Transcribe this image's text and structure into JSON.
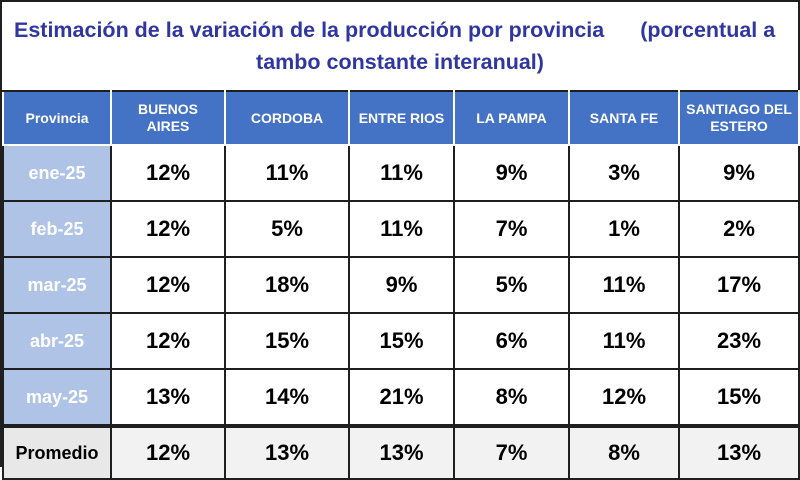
{
  "title": {
    "line1_main": "Estimación de la variación de la producción por provincia",
    "line1_tail": "(porcentual a",
    "line2": "tambo constante interanual)"
  },
  "table": {
    "headers": [
      "Provincia",
      "BUENOS AIRES",
      "CORDOBA",
      "ENTRE RIOS",
      "LA PAMPA",
      "SANTA FE",
      "SANTIAGO DEL ESTERO"
    ],
    "rows": [
      {
        "month": "ene-25",
        "values": [
          "12%",
          "11%",
          "11%",
          "9%",
          "3%",
          "9%"
        ]
      },
      {
        "month": "feb-25",
        "values": [
          "12%",
          "5%",
          "11%",
          "7%",
          "1%",
          "2%"
        ]
      },
      {
        "month": "mar-25",
        "values": [
          "12%",
          "18%",
          "9%",
          "5%",
          "11%",
          "17%"
        ]
      },
      {
        "month": "abr-25",
        "values": [
          "12%",
          "15%",
          "15%",
          "6%",
          "11%",
          "23%"
        ]
      },
      {
        "month": "may-25",
        "values": [
          "13%",
          "14%",
          "21%",
          "8%",
          "12%",
          "15%"
        ]
      }
    ],
    "average": {
      "label": "Promedio",
      "values": [
        "12%",
        "13%",
        "13%",
        "7%",
        "8%",
        "13%"
      ]
    }
  },
  "colors": {
    "title_text": "#2f36a0",
    "header_bg": "#4472c4",
    "month_bg": "#aec3e6",
    "average_bg": "#f2f2f2"
  }
}
